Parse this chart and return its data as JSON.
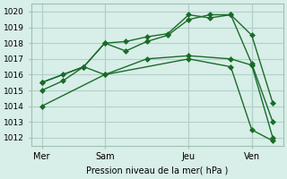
{
  "title": "",
  "xlabel": "Pression niveau de la mer( hPa )",
  "ylabel": "",
  "background_color": "#d8eee8",
  "grid_color": "#b0d0c8",
  "line_color": "#1a6b2a",
  "marker_color": "#1a6b2a",
  "ylim": [
    1011.5,
    1020.5
  ],
  "xtick_labels": [
    "Mer",
    "Sam",
    "Jeu",
    "Ven"
  ],
  "xtick_positions": [
    0,
    3,
    7,
    10
  ],
  "vline_positions": [
    0,
    3,
    7,
    10
  ],
  "series": [
    {
      "x": [
        0,
        1,
        2,
        3,
        4,
        5,
        6,
        7,
        8,
        9,
        10,
        11
      ],
      "y": [
        1015.0,
        1015.6,
        1016.5,
        1018.0,
        1018.1,
        1018.4,
        1018.6,
        1019.8,
        1019.6,
        1019.8,
        1016.7,
        1013.0
      ]
    },
    {
      "x": [
        0,
        1,
        2,
        3,
        4,
        5,
        6,
        7,
        8,
        9,
        10,
        11
      ],
      "y": [
        1015.5,
        1016.0,
        1016.5,
        1018.0,
        1017.5,
        1018.1,
        1018.5,
        1019.5,
        1019.8,
        1019.8,
        1018.5,
        1014.2
      ]
    },
    {
      "x": [
        0,
        2,
        3,
        5,
        7,
        9,
        10,
        11
      ],
      "y": [
        1015.5,
        1016.5,
        1016.0,
        1017.0,
        1017.2,
        1017.0,
        1016.6,
        1012.0
      ]
    },
    {
      "x": [
        0,
        3,
        7,
        9,
        10,
        11
      ],
      "y": [
        1014.0,
        1016.0,
        1017.0,
        1016.5,
        1012.5,
        1011.8
      ]
    }
  ]
}
